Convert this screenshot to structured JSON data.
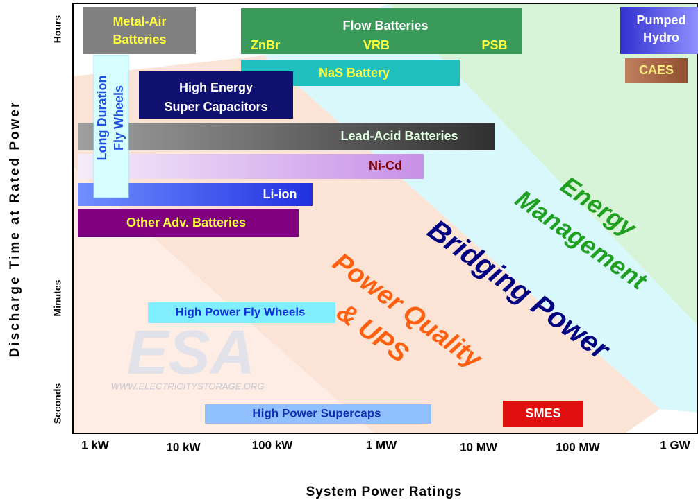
{
  "axes": {
    "y_title": "Discharge Time at Rated Power",
    "x_title": "System Power Ratings",
    "y_ticks": [
      "Hours",
      "Minutes",
      "Seconds"
    ],
    "x_ticks": [
      "1 kW",
      "10 kW",
      "100 kW",
      "1 MW",
      "10 MW",
      "100 MW",
      "1 GW"
    ]
  },
  "technologies": [
    {
      "lines": [
        "Metal-Air",
        "Batteries"
      ]
    },
    {
      "lines": [
        "Flow Batteries"
      ],
      "sub": [
        "ZnBr",
        "VRB",
        "PSB"
      ]
    },
    {
      "lines": [
        "Pumped",
        "Hydro"
      ]
    },
    {
      "lines": [
        "CAES"
      ]
    },
    {
      "lines": [
        "NaS Battery"
      ]
    },
    {
      "lines": [
        "Long Duration",
        "Fly Wheels"
      ]
    },
    {
      "lines": [
        "High Energy",
        "Super Capacitors"
      ]
    },
    {
      "lines": [
        "Lead-Acid  Batteries"
      ]
    },
    {
      "lines": [
        "Ni-Cd"
      ]
    },
    {
      "lines": [
        "Li-ion"
      ]
    },
    {
      "lines": [
        "Other Adv.  Batteries"
      ]
    },
    {
      "lines": [
        "High Power Fly Wheels"
      ]
    },
    {
      "lines": [
        "High Power Supercaps"
      ]
    },
    {
      "lines": [
        "SMES"
      ]
    }
  ],
  "regions": [
    {
      "lines": [
        "Energy",
        "Management"
      ]
    },
    {
      "lines": [
        "Bridging Power"
      ]
    },
    {
      "lines": [
        "Power Quality",
        "& UPS"
      ]
    }
  ],
  "watermark": {
    "logo": "ESA",
    "url": "WWW.ELECTRICITYSTORAGE.ORG"
  }
}
